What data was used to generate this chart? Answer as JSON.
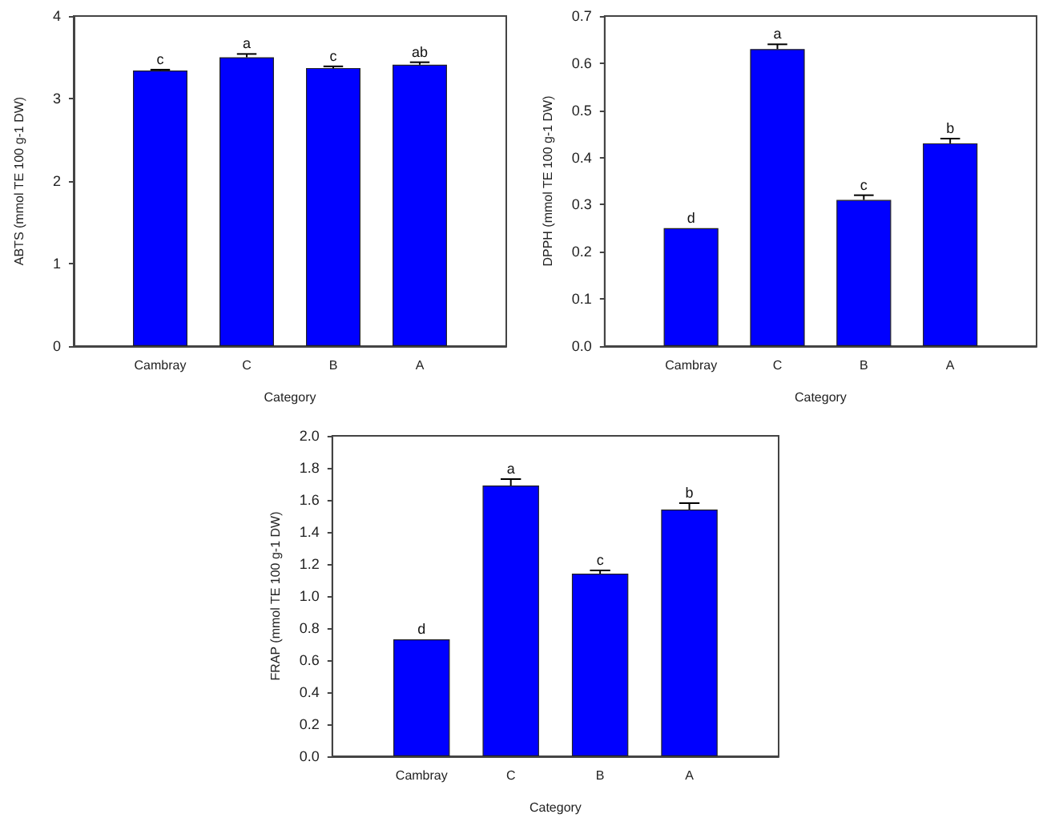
{
  "chart_data": [
    {
      "type": "bar",
      "categories": [
        "Cambray",
        "C",
        "B",
        "A"
      ],
      "xlabel": "Category",
      "ylabel": "ABTS (mmol TE 100 g-1 DW)",
      "ylim": [
        0,
        4
      ],
      "yticks": [
        0,
        1,
        2,
        3,
        4
      ],
      "grid": false,
      "color": "#0000ff",
      "values": [
        3.34,
        3.5,
        3.37,
        3.41
      ],
      "errors": [
        0.01,
        0.04,
        0.02,
        0.03
      ],
      "annotations": [
        {
          "text": "c",
          "x": "Cambray",
          "y": 3.34
        },
        {
          "text": "a",
          "x": "C",
          "y": 3.5
        },
        {
          "text": "c",
          "x": "B",
          "y": 3.37
        },
        {
          "text": "ab",
          "x": "A",
          "y": 3.41
        }
      ]
    },
    {
      "type": "bar",
      "categories": [
        "Cambray",
        "C",
        "B",
        "A"
      ],
      "xlabel": "Category",
      "ylabel": "DPPH (mmol TE 100 g-1 DW)",
      "ylim": [
        0,
        0.7
      ],
      "yticks": [
        {
          "value": 0,
          "label": "0.0"
        },
        {
          "value": 0.1,
          "label": "0.1"
        },
        {
          "value": 0.2,
          "label": "0.2"
        },
        {
          "value": 0.3,
          "label": "0.3"
        },
        {
          "value": 0.4,
          "label": "0.4"
        },
        {
          "value": 0.5,
          "label": "0.5"
        },
        {
          "value": 0.6,
          "label": "0.6"
        },
        {
          "value": 0.7,
          "label": "0.7"
        }
      ],
      "grid": false,
      "color": "#0000ff",
      "values": [
        0.25,
        0.63,
        0.31,
        0.43
      ],
      "errors": [
        null,
        0.01,
        0.01,
        0.01
      ],
      "annotations": [
        {
          "text": "d",
          "x": "Cambray",
          "y": 0.25
        },
        {
          "text": "a",
          "x": "C",
          "y": 0.63
        },
        {
          "text": "c",
          "x": "B",
          "y": 0.31
        },
        {
          "text": "b",
          "x": "A",
          "y": 0.43
        }
      ]
    },
    {
      "type": "bar",
      "categories": [
        "Cambray",
        "C",
        "B",
        "A"
      ],
      "xlabel": "Category",
      "ylabel": "FRAP (mmol TE 100 g-1 DW)",
      "ylim": [
        0,
        2
      ],
      "yticks": [
        {
          "value": 0,
          "label": "0.0"
        },
        {
          "value": 0.2,
          "label": "0.2"
        },
        {
          "value": 0.4,
          "label": "0.4"
        },
        {
          "value": 0.6,
          "label": "0.6"
        },
        {
          "value": 0.8,
          "label": "0.8"
        },
        {
          "value": 1,
          "label": "1.0"
        },
        {
          "value": 1.2,
          "label": "1.2"
        },
        {
          "value": 1.4,
          "label": "1.4"
        },
        {
          "value": 1.6,
          "label": "1.6"
        },
        {
          "value": 1.8,
          "label": "1.8"
        },
        {
          "value": 2,
          "label": "2.0"
        }
      ],
      "grid": false,
      "color": "#0000ff",
      "values": [
        0.73,
        1.69,
        1.14,
        1.54
      ],
      "errors": [
        null,
        0.04,
        0.02,
        0.04
      ],
      "annotations": [
        {
          "text": "d",
          "x": "Cambray",
          "y": 0.73
        },
        {
          "text": "a",
          "x": "C",
          "y": 1.69
        },
        {
          "text": "c",
          "x": "B",
          "y": 1.14
        },
        {
          "text": "b",
          "x": "A",
          "y": 1.54
        }
      ]
    }
  ]
}
